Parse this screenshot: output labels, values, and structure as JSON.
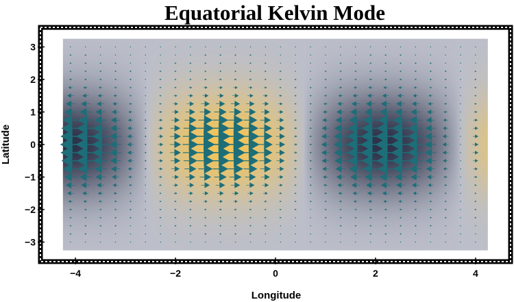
{
  "chart_data": {
    "type": "vector-field-density",
    "title": "Equatorial Kelvin Mode",
    "xlabel": "Longitude",
    "ylabel": "Latitude",
    "xlim": [
      -4.7,
      4.7
    ],
    "ylim": [
      -3.6,
      3.6
    ],
    "data_extent": {
      "x": [
        -4.25,
        4.25
      ],
      "y": [
        -3.25,
        3.25
      ]
    },
    "x_ticks": [
      -4,
      -2,
      0,
      2,
      4
    ],
    "y_ticks": [
      -3,
      -2,
      -1,
      0,
      1,
      2,
      3
    ],
    "x_tick_labels": [
      "−4",
      "−2",
      "0",
      "2",
      "4"
    ],
    "y_tick_labels": [
      "−3",
      "−2",
      "−1",
      "0",
      "1",
      "2",
      "3"
    ],
    "field": {
      "form": "u = cos(k*(x - x0)) * exp(-y^2/2), v = 0",
      "wavenumber": 1.0,
      "phase_x0": -1.0,
      "arrow_grid_x": [
        -4.1,
        -3.8,
        -3.5,
        -3.2,
        -2.9,
        -2.6,
        -2.3,
        -2.0,
        -1.7,
        -1.4,
        -1.1,
        -0.8,
        -0.5,
        -0.2,
        0.1,
        0.4,
        0.7,
        1.0,
        1.3,
        1.6,
        1.9,
        2.2,
        2.5,
        2.8,
        3.1,
        3.4,
        3.7,
        4.0
      ],
      "arrow_grid_y": [
        -3.0,
        -2.75,
        -2.5,
        -2.25,
        -2.0,
        -1.75,
        -1.5,
        -1.25,
        -1.0,
        -0.75,
        -0.5,
        -0.25,
        0.0,
        0.25,
        0.5,
        0.75,
        1.0,
        1.25,
        1.5,
        1.75,
        2.0,
        2.25,
        2.5,
        2.75,
        3.0
      ]
    },
    "colors": {
      "arrow": "#1d6e78",
      "high": "#f3c458",
      "low": "#2c3148",
      "neutral": "#bcbfca",
      "frame_outer": "#000000",
      "frame_inner": "#ffffff"
    },
    "grid": false
  }
}
